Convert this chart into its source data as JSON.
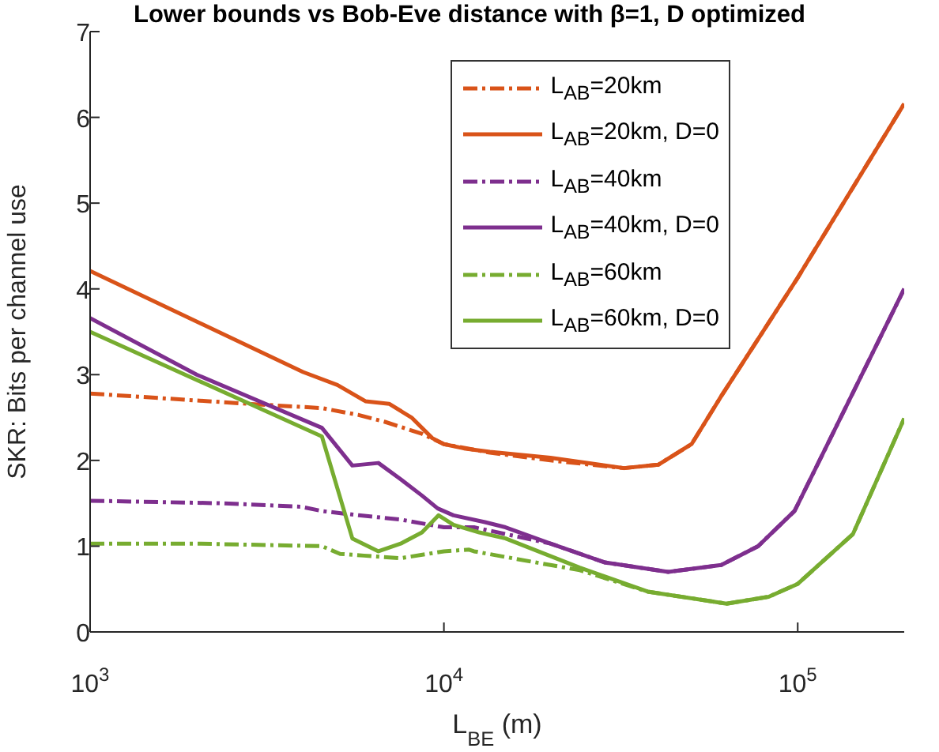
{
  "chart_data": {
    "type": "line",
    "title": "Lower bounds vs Bob-Eve distance with β=1, D optimized",
    "xlabel": "L$_{BE}$ (m)",
    "ylabel": "SKR: Bits per channel use",
    "log": "x",
    "xlim": [
      1000,
      200000
    ],
    "xticks": [
      {
        "value": 1000,
        "label": "10$^{3}$"
      },
      {
        "value": 10000,
        "label": "10$^{4}$"
      },
      {
        "value": 100000,
        "label": "10$^{5}$"
      }
    ],
    "ylim": [
      0,
      7
    ],
    "yticks": [
      0,
      1,
      2,
      3,
      4,
      5,
      6,
      7
    ],
    "grid": false,
    "legend": "top right",
    "marker": "none",
    "series": [
      {
        "name": "L$_{AB}$=20km",
        "color": "#d95319",
        "line_style": "dashed",
        "x": [
          1000,
          1670,
          2790,
          4520,
          5740,
          6810,
          8670,
          10000,
          13490,
          20000,
          32280,
          40360,
          50120,
          60810,
          100000,
          200000
        ],
        "values": [
          2.78,
          2.72,
          2.66,
          2.61,
          2.53,
          2.45,
          2.31,
          2.19,
          2.09,
          2.0,
          1.91,
          1.95,
          2.19,
          2.75,
          4.13,
          6.16
        ]
      },
      {
        "name": "L$_{AB}$=20km, D=0",
        "color": "#d95319",
        "line_style": "solid",
        "x": [
          1000,
          4000,
          5000,
          6000,
          7000,
          8100,
          9270,
          10000,
          11400,
          13490,
          20000,
          32280,
          40360,
          50120,
          60810,
          100000,
          200000
        ],
        "values": [
          4.21,
          3.03,
          2.88,
          2.69,
          2.66,
          2.5,
          2.26,
          2.19,
          2.14,
          2.1,
          2.03,
          1.91,
          1.95,
          2.19,
          2.75,
          4.13,
          6.16
        ]
      },
      {
        "name": "L$_{AB}$=40km",
        "color": "#7e2f8e",
        "line_style": "dashed",
        "x": [
          1000,
          2360,
          3940,
          4520,
          5740,
          7550,
          10000,
          12160,
          20000,
          28510,
          43050,
          60810,
          77270,
          97950,
          200000
        ],
        "values": [
          1.53,
          1.5,
          1.46,
          1.41,
          1.36,
          1.31,
          1.22,
          1.22,
          1.03,
          0.81,
          0.7,
          0.78,
          1.0,
          1.41,
          4.0
        ]
      },
      {
        "name": "L$_{AB}$=40km, D=0",
        "color": "#7e2f8e",
        "line_style": "solid",
        "x": [
          1000,
          2000,
          4520,
          5510,
          6530,
          7550,
          8670,
          9600,
          10640,
          13060,
          14930,
          20000,
          28510,
          43050,
          60810,
          77270,
          97950,
          200000
        ],
        "values": [
          3.66,
          3.0,
          2.38,
          1.94,
          1.97,
          1.78,
          1.59,
          1.44,
          1.36,
          1.28,
          1.22,
          1.03,
          0.81,
          0.7,
          0.78,
          1.0,
          1.41,
          4.0
        ]
      },
      {
        "name": "L$_{AB}$=60km",
        "color": "#77ac30",
        "line_style": "dashed",
        "x": [
          1000,
          2000,
          4520,
          5090,
          5940,
          7550,
          10000,
          11780,
          12160,
          20000,
          24210,
          37670,
          62950,
          82790,
          100000,
          143200,
          200000
        ],
        "values": [
          1.03,
          1.03,
          1.0,
          0.91,
          0.89,
          0.86,
          0.94,
          0.96,
          0.94,
          0.78,
          0.72,
          0.47,
          0.33,
          0.41,
          0.56,
          1.14,
          2.49
        ]
      },
      {
        "name": "L$_{AB}$=60km, D=0",
        "color": "#77ac30",
        "line_style": "solid",
        "x": [
          1000,
          4520,
          5510,
          6530,
          7550,
          8670,
          9660,
          10640,
          12590,
          14930,
          24210,
          37670,
          62950,
          82790,
          100000,
          143200,
          200000
        ],
        "values": [
          3.5,
          2.28,
          1.09,
          0.94,
          1.03,
          1.16,
          1.36,
          1.25,
          1.16,
          1.09,
          0.75,
          0.47,
          0.33,
          0.41,
          0.56,
          1.14,
          2.49
        ]
      }
    ]
  }
}
